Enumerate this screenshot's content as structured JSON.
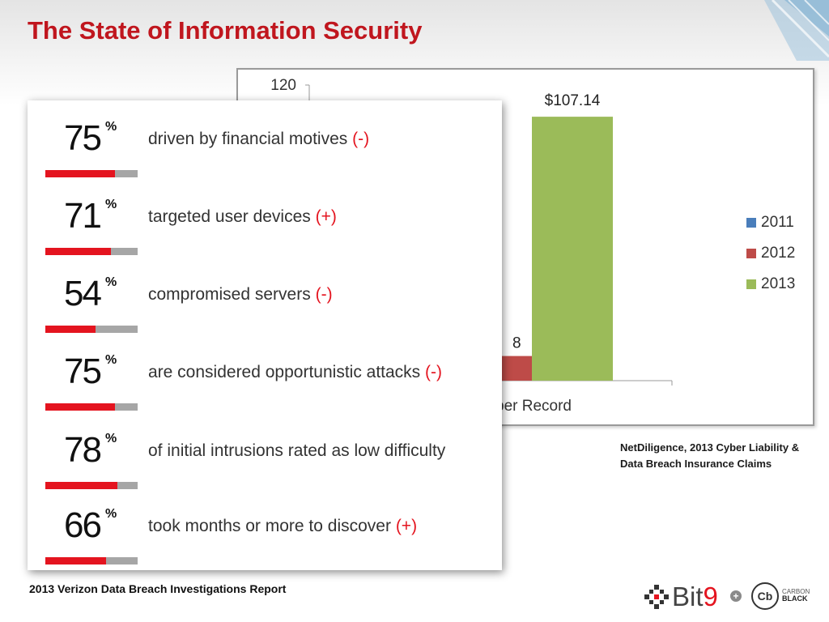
{
  "slide": {
    "title": "The State of Information Security",
    "title_color": "#c0161e",
    "source_right": "NetDiligence, 2013 Cyber Liability & Data Breach Insurance Claims",
    "source_left": "2013 Verizon Data Breach Investigations Report"
  },
  "stats": [
    {
      "value": "75",
      "pct": "%",
      "label": "driven by financial motives",
      "mark": "(-)",
      "fill": 0.75
    },
    {
      "value": "71",
      "pct": "%",
      "label": "targeted user devices",
      "mark": "(+)",
      "fill": 0.71
    },
    {
      "value": "54",
      "pct": "%",
      "label": "compromised servers",
      "mark": "(-)",
      "fill": 0.54
    },
    {
      "value": "75",
      "pct": "%",
      "label": "are considered opportunistic attacks",
      "mark": "(-)",
      "fill": 0.75
    },
    {
      "value": "78",
      "pct": "%",
      "label": "of initial intrusions rated as low difficulty",
      "mark": "",
      "fill": 0.78
    },
    {
      "value": "66",
      "pct": "%",
      "label": "took months or more to discover",
      "mark": "(+)",
      "fill": 0.66
    }
  ],
  "chart_data": {
    "type": "bar",
    "categories": [
      "Cost Per Record"
    ],
    "category_label_visible": "per Record",
    "series": [
      {
        "name": "2011",
        "values": [
          null
        ],
        "color": "#4a7ebb"
      },
      {
        "name": "2012",
        "values": [
          10
        ],
        "color": "#be4b48",
        "value_label_visible": "8"
      },
      {
        "name": "2013",
        "values": [
          107.14
        ],
        "color": "#9bbb59",
        "value_label": "$107.14"
      }
    ],
    "ytick_visible": "120",
    "ylim": [
      0,
      120
    ],
    "legend_position": "right",
    "grid": false
  },
  "logo": {
    "bit": "Bit",
    "nine": "9",
    "plus": "+",
    "cb": "Cb",
    "carbon": "CARBON",
    "black": "BLACK"
  }
}
